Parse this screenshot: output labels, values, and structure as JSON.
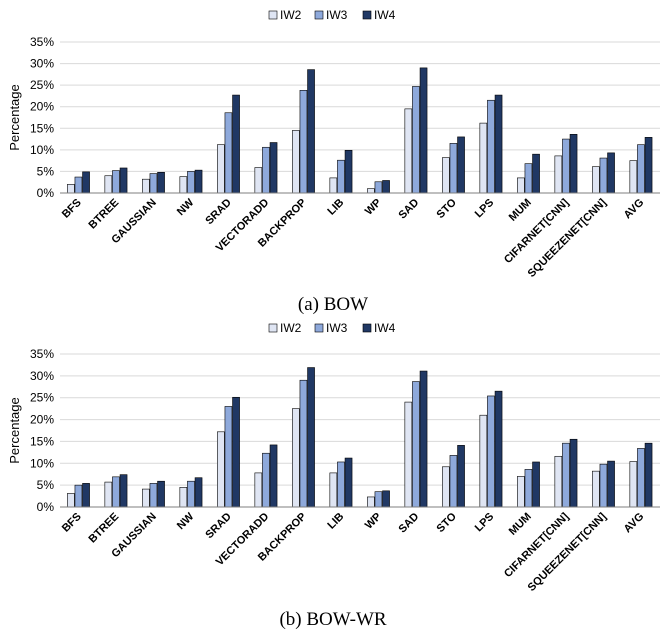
{
  "legend_labels": [
    "IW2",
    "IW3",
    "IW4"
  ],
  "colors": {
    "IW2": "#dfe5f3",
    "IW3": "#8ea9db",
    "IW4": "#203864",
    "grid": "#d9d9d9",
    "axis": "#7f7f7f",
    "bar_edge": "#000000"
  },
  "chart_data": [
    {
      "type": "bar",
      "caption": "(a) BOW",
      "ylabel": "Percentage",
      "ylim": [
        0,
        35
      ],
      "yticks": [
        "0%",
        "5%",
        "10%",
        "15%",
        "20%",
        "25%",
        "30%",
        "35%"
      ],
      "grid": true,
      "legend_position": "top-center",
      "categories": [
        "BFS",
        "BTREE",
        "GAUSSIAN",
        "NW",
        "SRAD",
        "VECTORADD",
        "BACKPROP",
        "LIB",
        "WP",
        "SAD",
        "STO",
        "LPS",
        "MUM",
        "CIFARNET[CNN]",
        "SQUEEZENET[CNN]",
        "AVG"
      ],
      "series": [
        {
          "name": "IW2",
          "values": [
            2.0,
            4.0,
            3.2,
            3.8,
            11.2,
            5.9,
            14.5,
            3.5,
            1.0,
            19.5,
            8.2,
            16.2,
            3.5,
            8.6,
            6.1,
            7.5
          ]
        },
        {
          "name": "IW3",
          "values": [
            3.7,
            5.2,
            4.5,
            5.0,
            18.6,
            10.6,
            23.8,
            7.6,
            2.6,
            24.7,
            11.5,
            21.5,
            6.8,
            12.5,
            8.1,
            11.2
          ]
        },
        {
          "name": "IW4",
          "values": [
            4.9,
            5.8,
            4.8,
            5.3,
            22.7,
            11.7,
            28.6,
            9.9,
            2.9,
            29.0,
            13.0,
            22.7,
            9.0,
            13.6,
            9.3,
            12.9
          ]
        }
      ]
    },
    {
      "type": "bar",
      "caption": "(b) BOW-WR",
      "ylabel": "Percentage",
      "ylim": [
        0,
        35
      ],
      "yticks": [
        "0%",
        "5%",
        "10%",
        "15%",
        "20%",
        "25%",
        "30%",
        "35%"
      ],
      "grid": true,
      "legend_position": "top-center",
      "categories": [
        "BFS",
        "BTREE",
        "GAUSSIAN",
        "NW",
        "SRAD",
        "VECTORADD",
        "BACKPROP",
        "LIB",
        "WP",
        "SAD",
        "STO",
        "LPS",
        "MUM",
        "CIFARNET[CNN]",
        "SQUEEZENET[CNN]",
        "AVG"
      ],
      "series": [
        {
          "name": "IW2",
          "values": [
            3.1,
            5.7,
            4.1,
            4.5,
            17.2,
            7.8,
            22.5,
            7.8,
            2.3,
            24.0,
            9.2,
            21.0,
            7.0,
            11.6,
            8.2,
            10.4
          ]
        },
        {
          "name": "IW3",
          "values": [
            5.0,
            6.9,
            5.4,
            5.9,
            23.0,
            12.3,
            29.0,
            10.3,
            3.5,
            28.7,
            11.8,
            25.4,
            8.6,
            14.6,
            9.8,
            13.4
          ]
        },
        {
          "name": "IW4",
          "values": [
            5.4,
            7.4,
            5.9,
            6.7,
            25.1,
            14.2,
            31.9,
            11.2,
            3.7,
            31.1,
            14.1,
            26.5,
            10.3,
            15.5,
            10.5,
            14.6
          ]
        }
      ]
    }
  ]
}
